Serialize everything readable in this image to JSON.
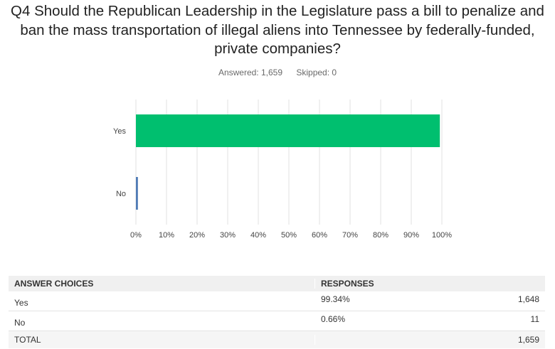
{
  "question": "Q4 Should the Republican Leadership in the Legislature pass a bill to penalize and ban the mass transportation of illegal aliens into Tennessee by federally-funded, private companies?",
  "answered_label": "Answered: 1,659",
  "skipped_label": "Skipped: 0",
  "chart_data": {
    "type": "bar",
    "orientation": "horizontal",
    "categories": [
      "Yes",
      "No"
    ],
    "values": [
      99.34,
      0.66
    ],
    "colors": [
      "#00bf6f",
      "#507cb6"
    ],
    "xlim": [
      0,
      100
    ],
    "x_ticks": [
      "0%",
      "10%",
      "20%",
      "30%",
      "40%",
      "50%",
      "60%",
      "70%",
      "80%",
      "90%",
      "100%"
    ],
    "grid": true
  },
  "table": {
    "headers": [
      "ANSWER CHOICES",
      "RESPONSES"
    ],
    "rows": [
      {
        "choice": "Yes",
        "percent": "99.34%",
        "count": "1,648"
      },
      {
        "choice": "No",
        "percent": "0.66%",
        "count": "11"
      }
    ],
    "total_label": "TOTAL",
    "total_count": "1,659"
  }
}
